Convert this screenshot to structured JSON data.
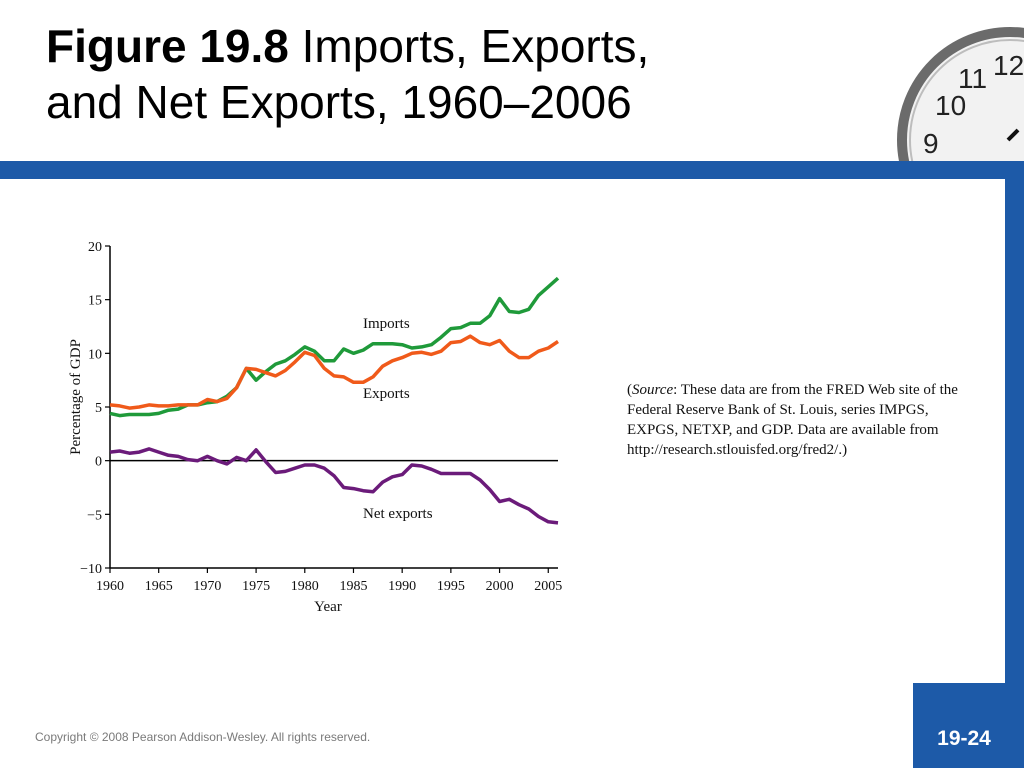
{
  "slide": {
    "title_bold": "Figure 19.8",
    "title_rest": " Imports, Exports,",
    "title_line2": "and Net Exports, 1960–2006",
    "source_italic": "Source",
    "source_text": ": These data are from the FRED Web site of the Federal Reserve Bank of St. Louis, series IMPGS, EXPGS, NETXP, and GDP. Data are available from http://research.stlouisfed.org/fred2/.)",
    "source_open": "(",
    "copyright": "Copyright © 2008 Pearson Addison-Wesley. All rights reserved.",
    "page_number": "19-24",
    "accent_color": "#1d5aa8"
  },
  "chart_data": {
    "type": "line",
    "xlabel": "Year",
    "ylabel": "Percentage of GDP",
    "xlim": [
      1960,
      2006
    ],
    "ylim": [
      -10,
      20
    ],
    "x_ticks": [
      1960,
      1965,
      1970,
      1975,
      1980,
      1985,
      1990,
      1995,
      2000,
      2005
    ],
    "y_ticks": [
      20,
      15,
      10,
      5,
      0,
      -5,
      -10
    ],
    "y_tick_labels": [
      "20",
      "15",
      "10",
      "5",
      "0",
      "−5",
      "−10"
    ],
    "x": [
      1960,
      1961,
      1962,
      1963,
      1964,
      1965,
      1966,
      1967,
      1968,
      1969,
      1970,
      1971,
      1972,
      1973,
      1974,
      1975,
      1976,
      1977,
      1978,
      1979,
      1980,
      1981,
      1982,
      1983,
      1984,
      1985,
      1986,
      1987,
      1988,
      1989,
      1990,
      1991,
      1992,
      1993,
      1994,
      1995,
      1996,
      1997,
      1998,
      1999,
      2000,
      2001,
      2002,
      2003,
      2004,
      2005,
      2006
    ],
    "series": [
      {
        "name": "Imports",
        "color": "#1f9a3a",
        "values": [
          4.4,
          4.2,
          4.3,
          4.3,
          4.3,
          4.4,
          4.7,
          4.8,
          5.2,
          5.2,
          5.4,
          5.5,
          6.0,
          6.8,
          8.6,
          7.5,
          8.3,
          9.0,
          9.3,
          9.9,
          10.6,
          10.2,
          9.3,
          9.3,
          10.4,
          10.0,
          10.3,
          10.9,
          10.9,
          10.9,
          10.8,
          10.5,
          10.6,
          10.8,
          11.5,
          12.3,
          12.4,
          12.8,
          12.8,
          13.5,
          15.1,
          13.9,
          13.8,
          14.1,
          15.4,
          16.2,
          17.0
        ]
      },
      {
        "name": "Exports",
        "color": "#f05a1a",
        "values": [
          5.2,
          5.1,
          4.9,
          5.0,
          5.2,
          5.1,
          5.1,
          5.2,
          5.2,
          5.2,
          5.7,
          5.5,
          5.8,
          6.8,
          8.6,
          8.5,
          8.2,
          7.9,
          8.4,
          9.2,
          10.1,
          9.8,
          8.6,
          7.9,
          7.8,
          7.3,
          7.3,
          7.8,
          8.8,
          9.3,
          9.6,
          10.0,
          10.1,
          9.9,
          10.2,
          11.0,
          11.1,
          11.6,
          11.0,
          10.8,
          11.2,
          10.2,
          9.6,
          9.6,
          10.2,
          10.5,
          11.1
        ]
      },
      {
        "name": "Net exports",
        "color": "#6b1b7a",
        "values": [
          0.8,
          0.9,
          0.7,
          0.8,
          1.1,
          0.8,
          0.5,
          0.4,
          0.1,
          0.0,
          0.4,
          0.0,
          -0.3,
          0.3,
          0.0,
          1.0,
          -0.1,
          -1.1,
          -1.0,
          -0.7,
          -0.4,
          -0.4,
          -0.7,
          -1.4,
          -2.5,
          -2.6,
          -2.8,
          -2.9,
          -2.0,
          -1.5,
          -1.3,
          -0.4,
          -0.5,
          -0.8,
          -1.2,
          -1.2,
          -1.2,
          -1.2,
          -1.8,
          -2.7,
          -3.8,
          -3.6,
          -4.1,
          -4.5,
          -5.2,
          -5.7,
          -5.8
        ]
      }
    ],
    "annotations": [
      "Imports",
      "Exports",
      "Net exports"
    ],
    "zero_line": true,
    "grid": false,
    "legend": "none"
  }
}
